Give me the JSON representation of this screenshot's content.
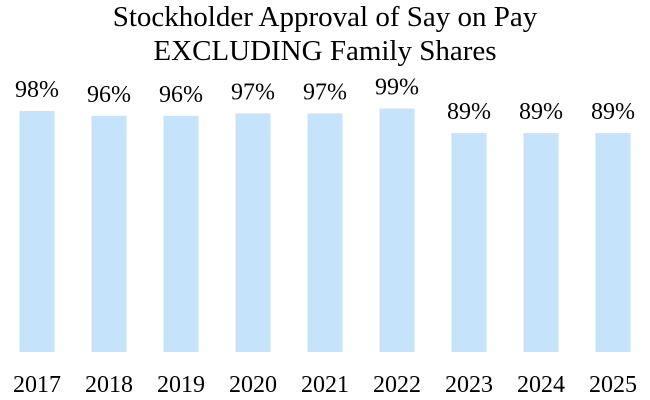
{
  "chart_data": {
    "type": "bar",
    "title": [
      "Stockholder Approval of Say on Pay",
      "EXCLUDING Family Shares"
    ],
    "categories": [
      "2017",
      "2018",
      "2019",
      "2020",
      "2021",
      "2022",
      "2023",
      "2024",
      "2025"
    ],
    "values": [
      98,
      96,
      96,
      97,
      97,
      99,
      89,
      89,
      89
    ],
    "data_labels": [
      "98%",
      "96%",
      "96%",
      "97%",
      "97%",
      "99%",
      "89%",
      "89%",
      "89%"
    ],
    "xlabel": "",
    "ylabel": "",
    "ylim": [
      0,
      100
    ],
    "y_axis_visible": false,
    "grid": false,
    "legend": "none",
    "bar_color": "#c5e3fb"
  }
}
